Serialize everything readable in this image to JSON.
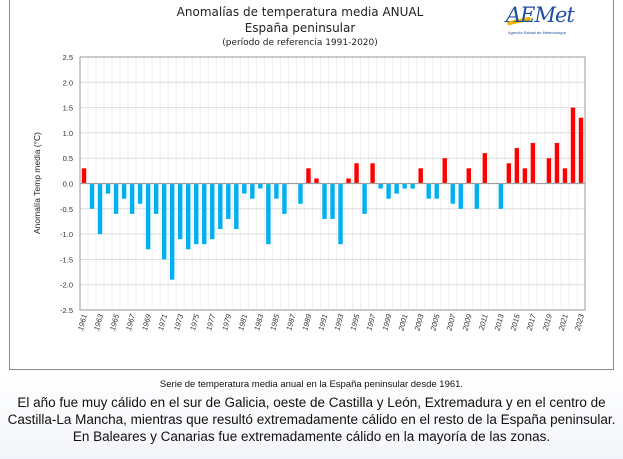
{
  "chart_data": {
    "type": "bar",
    "title": "Anomalías de temperatura media ANUAL",
    "subtitle": "España peninsular",
    "subtitle2": "(período de referencia 1991-2020)",
    "xlabel": "",
    "ylabel": "Anomalía Temp media (°C)",
    "ylim": [
      -2.5,
      2.5
    ],
    "yticks": [
      "2.5",
      "2.0",
      "1.5",
      "1.0",
      "0.5",
      "0.0",
      "-0.5",
      "-1.0",
      "-1.5",
      "-2.0",
      "-2.5"
    ],
    "ytick_values": [
      2.5,
      2.0,
      1.5,
      1.0,
      0.5,
      0.0,
      -0.5,
      -1.0,
      -1.5,
      -2.0,
      -2.5
    ],
    "grid": true,
    "positive_color": "#ff0000",
    "negative_color": "#00b0f0",
    "categories": [
      "1961",
      "1962",
      "1963",
      "1964",
      "1965",
      "1966",
      "1967",
      "1968",
      "1969",
      "1970",
      "1971",
      "1972",
      "1973",
      "1974",
      "1975",
      "1976",
      "1977",
      "1978",
      "1979",
      "1980",
      "1981",
      "1982",
      "1983",
      "1984",
      "1985",
      "1986",
      "1987",
      "1988",
      "1989",
      "1990",
      "1991",
      "1992",
      "1993",
      "1994",
      "1995",
      "1996",
      "1997",
      "1998",
      "1999",
      "2000",
      "2001",
      "2002",
      "2003",
      "2004",
      "2005",
      "2006",
      "2007",
      "2008",
      "2009",
      "2010",
      "2011",
      "2012",
      "2013",
      "2014",
      "2015",
      "2016",
      "2017",
      "2018",
      "2019",
      "2020",
      "2021",
      "2022",
      "2023"
    ],
    "xtick_labels": [
      "1961",
      "1963",
      "1965",
      "1967",
      "1969",
      "1971",
      "1973",
      "1975",
      "1977",
      "1979",
      "1981",
      "1983",
      "1985",
      "1987",
      "1989",
      "1991",
      "1993",
      "1995",
      "1997",
      "1999",
      "2001",
      "2003",
      "2005",
      "2007",
      "2009",
      "2011",
      "2013",
      "2015",
      "2017",
      "2019",
      "2021",
      "2023"
    ],
    "values": [
      0.3,
      -0.5,
      -1.0,
      -0.2,
      -0.6,
      -0.3,
      -0.6,
      -0.4,
      -1.3,
      -0.6,
      -1.5,
      -1.9,
      -1.1,
      -1.3,
      -1.2,
      -1.2,
      -1.1,
      -0.9,
      -0.7,
      -0.9,
      -0.2,
      -0.3,
      -0.1,
      -1.2,
      -0.3,
      -0.6,
      0.0,
      -0.4,
      0.3,
      0.1,
      -0.7,
      -0.7,
      -1.2,
      0.1,
      0.4,
      -0.6,
      0.4,
      -0.1,
      -0.3,
      -0.2,
      -0.1,
      -0.1,
      0.3,
      -0.3,
      -0.3,
      0.5,
      -0.4,
      -0.5,
      0.3,
      -0.5,
      0.6,
      0.0,
      -0.5,
      0.4,
      0.7,
      0.3,
      0.8,
      0.0,
      0.5,
      0.8,
      0.3,
      1.5,
      1.3
    ]
  },
  "logo": {
    "name": "AEMet",
    "subtitle": "Agencia Estatal de Meteorología"
  },
  "caption": {
    "short": "Serie de temperatura media anual en la España peninsular desde 1961.",
    "long": "El año fue muy cálido en el sur de Galicia, oeste de Castilla y León, Extremadura y en el centro de Castilla-La Mancha, mientras que resultó extremadamente cálido en el resto de la España peninsular. En Baleares y Canarias fue extremadamente cálido en la mayoría de las zonas."
  }
}
